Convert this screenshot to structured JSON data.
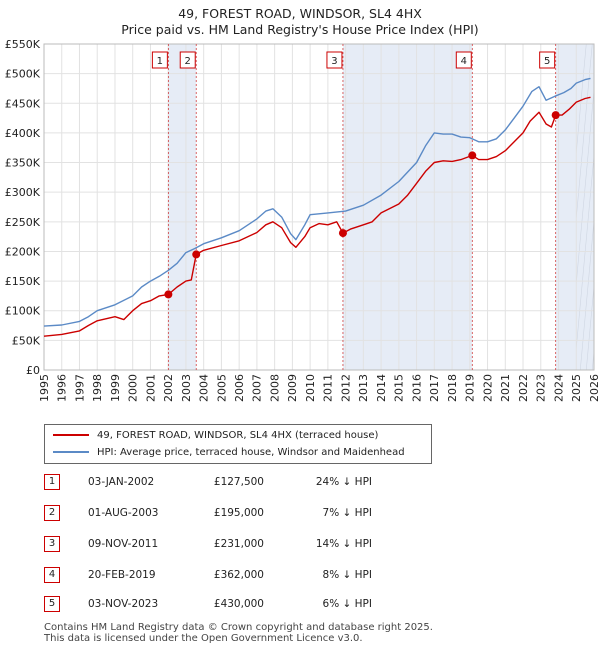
{
  "title": "49, FOREST ROAD, WINDSOR, SL4 4HX",
  "subtitle": "Price paid vs. HM Land Registry's House Price Index (HPI)",
  "chart_data": {
    "type": "line",
    "title": "49, FOREST ROAD, WINDSOR, SL4 4HX",
    "subtitle": "Price paid vs. HM Land Registry's House Price Index (HPI)",
    "xlim": [
      1995,
      2026
    ],
    "ylim": [
      0,
      550000
    ],
    "yticks": [
      0,
      50000,
      100000,
      150000,
      200000,
      250000,
      300000,
      350000,
      400000,
      450000,
      500000,
      550000
    ],
    "ytick_labels": [
      "£0",
      "£50K",
      "£100K",
      "£150K",
      "£200K",
      "£250K",
      "£300K",
      "£350K",
      "£400K",
      "£450K",
      "£500K",
      "£550K"
    ],
    "xticks": [
      1995,
      1996,
      1997,
      1998,
      1999,
      2000,
      2001,
      2002,
      2003,
      2004,
      2005,
      2006,
      2007,
      2008,
      2009,
      2010,
      2011,
      2012,
      2013,
      2014,
      2015,
      2016,
      2017,
      2018,
      2019,
      2020,
      2021,
      2022,
      2023,
      2024,
      2025,
      2026
    ],
    "grid": true,
    "series": [
      {
        "name": "49, FOREST ROAD, WINDSOR, SL4 4HX (terraced house)",
        "color": "#cc0000",
        "points": [
          [
            1995.0,
            57000
          ],
          [
            1996.0,
            60000
          ],
          [
            1997.0,
            66000
          ],
          [
            1997.5,
            75000
          ],
          [
            1998.0,
            83000
          ],
          [
            1999.0,
            90000
          ],
          [
            1999.5,
            85000
          ],
          [
            2000.0,
            100000
          ],
          [
            2000.5,
            112000
          ],
          [
            2001.0,
            117000
          ],
          [
            2001.5,
            125000
          ],
          [
            2002.01,
            127500
          ],
          [
            2002.5,
            140000
          ],
          [
            2003.0,
            150000
          ],
          [
            2003.3,
            152000
          ],
          [
            2003.58,
            195000
          ],
          [
            2004.0,
            202000
          ],
          [
            2005.0,
            210000
          ],
          [
            2006.0,
            218000
          ],
          [
            2007.0,
            232000
          ],
          [
            2007.5,
            245000
          ],
          [
            2007.9,
            250000
          ],
          [
            2008.4,
            240000
          ],
          [
            2008.9,
            215000
          ],
          [
            2009.2,
            207000
          ],
          [
            2009.7,
            225000
          ],
          [
            2010.0,
            240000
          ],
          [
            2010.5,
            247000
          ],
          [
            2011.0,
            245000
          ],
          [
            2011.5,
            250000
          ],
          [
            2011.85,
            231000
          ],
          [
            2012.3,
            238000
          ],
          [
            2013.0,
            245000
          ],
          [
            2013.5,
            250000
          ],
          [
            2014.0,
            265000
          ],
          [
            2015.0,
            280000
          ],
          [
            2015.5,
            295000
          ],
          [
            2016.0,
            315000
          ],
          [
            2016.5,
            335000
          ],
          [
            2017.0,
            350000
          ],
          [
            2017.5,
            353000
          ],
          [
            2018.0,
            352000
          ],
          [
            2018.5,
            355000
          ],
          [
            2019.14,
            362000
          ],
          [
            2019.5,
            355000
          ],
          [
            2020.0,
            355000
          ],
          [
            2020.5,
            360000
          ],
          [
            2021.0,
            370000
          ],
          [
            2021.5,
            385000
          ],
          [
            2022.0,
            400000
          ],
          [
            2022.4,
            420000
          ],
          [
            2022.9,
            435000
          ],
          [
            2023.3,
            415000
          ],
          [
            2023.6,
            410000
          ],
          [
            2023.84,
            430000
          ],
          [
            2024.2,
            430000
          ],
          [
            2024.6,
            440000
          ],
          [
            2025.0,
            452000
          ],
          [
            2025.5,
            458000
          ],
          [
            2025.8,
            460000
          ]
        ]
      },
      {
        "name": "HPI: Average price, terraced house, Windsor and Maidenhead",
        "color": "#5b8ac6",
        "points": [
          [
            1995.0,
            74000
          ],
          [
            1996.0,
            76000
          ],
          [
            1997.0,
            82000
          ],
          [
            1997.5,
            90000
          ],
          [
            1998.0,
            100000
          ],
          [
            1999.0,
            110000
          ],
          [
            2000.0,
            125000
          ],
          [
            2000.5,
            140000
          ],
          [
            2001.0,
            150000
          ],
          [
            2001.5,
            158000
          ],
          [
            2002.0,
            168000
          ],
          [
            2002.5,
            180000
          ],
          [
            2003.0,
            198000
          ],
          [
            2003.5,
            205000
          ],
          [
            2004.0,
            213000
          ],
          [
            2005.0,
            223000
          ],
          [
            2006.0,
            235000
          ],
          [
            2007.0,
            255000
          ],
          [
            2007.5,
            268000
          ],
          [
            2007.9,
            272000
          ],
          [
            2008.4,
            258000
          ],
          [
            2008.9,
            230000
          ],
          [
            2009.2,
            220000
          ],
          [
            2009.7,
            245000
          ],
          [
            2010.0,
            262000
          ],
          [
            2011.0,
            265000
          ],
          [
            2012.0,
            268000
          ],
          [
            2013.0,
            278000
          ],
          [
            2014.0,
            295000
          ],
          [
            2015.0,
            318000
          ],
          [
            2016.0,
            350000
          ],
          [
            2016.5,
            378000
          ],
          [
            2017.0,
            400000
          ],
          [
            2017.5,
            398000
          ],
          [
            2018.0,
            398000
          ],
          [
            2018.5,
            393000
          ],
          [
            2019.0,
            392000
          ],
          [
            2019.5,
            385000
          ],
          [
            2020.0,
            385000
          ],
          [
            2020.5,
            390000
          ],
          [
            2021.0,
            405000
          ],
          [
            2021.5,
            425000
          ],
          [
            2022.0,
            445000
          ],
          [
            2022.5,
            470000
          ],
          [
            2022.9,
            478000
          ],
          [
            2023.3,
            455000
          ],
          [
            2023.8,
            462000
          ],
          [
            2024.3,
            468000
          ],
          [
            2024.7,
            475000
          ],
          [
            2025.0,
            484000
          ],
          [
            2025.5,
            490000
          ],
          [
            2025.8,
            492000
          ]
        ]
      }
    ],
    "events": [
      {
        "n": "1",
        "x": 2002.01,
        "y": 127500
      },
      {
        "n": "2",
        "x": 2003.58,
        "y": 195000
      },
      {
        "n": "3",
        "x": 2011.85,
        "y": 231000
      },
      {
        "n": "4",
        "x": 2019.14,
        "y": 362000
      },
      {
        "n": "5",
        "x": 2023.84,
        "y": 430000
      }
    ],
    "shaded_spans": [
      [
        2002.01,
        2003.58
      ],
      [
        2011.85,
        2019.14
      ],
      [
        2023.84,
        2026
      ]
    ]
  },
  "legend": {
    "property_label": "49, FOREST ROAD, WINDSOR, SL4 4HX (terraced house)",
    "hpi_label": "HPI: Average price, terraced house, Windsor and Maidenhead",
    "property_color": "#cc0000",
    "hpi_color": "#5b8ac6"
  },
  "transactions": [
    {
      "n": "1",
      "date": "03-JAN-2002",
      "price": "£127,500",
      "hpi": "24% ↓ HPI"
    },
    {
      "n": "2",
      "date": "01-AUG-2003",
      "price": "£195,000",
      "hpi": "7% ↓ HPI"
    },
    {
      "n": "3",
      "date": "09-NOV-2011",
      "price": "£231,000",
      "hpi": "14% ↓ HPI"
    },
    {
      "n": "4",
      "date": "20-FEB-2019",
      "price": "£362,000",
      "hpi": "8% ↓ HPI"
    },
    {
      "n": "5",
      "date": "03-NOV-2023",
      "price": "£430,000",
      "hpi": "6% ↓ HPI"
    }
  ],
  "footer": {
    "line1": "Contains HM Land Registry data © Crown copyright and database right 2025.",
    "line2": "This data is licensed under the Open Government Licence v3.0."
  }
}
